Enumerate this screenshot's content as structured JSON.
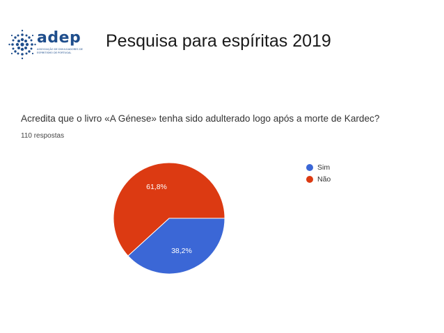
{
  "header": {
    "logo_word": "adep",
    "logo_subtitle": "Associação de Divulgadores de Espiritismo de Portugal",
    "title": "Pesquisa para espíritas  2019"
  },
  "survey": {
    "question": "Acredita que o livro «A Génese» tenha sido adulterado logo após a morte de Kardec?",
    "responses": "110 respostas"
  },
  "chart_data": {
    "type": "pie",
    "title": "Acredita que o livro «A Génese» tenha sido adulterado logo após a morte de Kardec?",
    "subtitle": "110 respostas",
    "categories": [
      "Sim",
      "Não"
    ],
    "values": [
      38.2,
      61.8
    ],
    "labels": [
      "38,2%",
      "61,8%"
    ],
    "colors": [
      "#3b67d6",
      "#dc3a12"
    ],
    "legend_position": "right"
  }
}
